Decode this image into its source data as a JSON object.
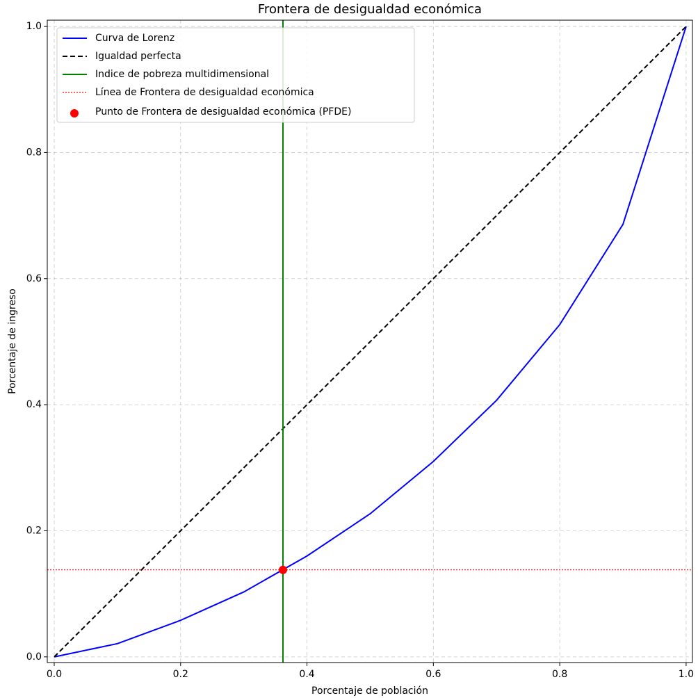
{
  "chart_data": {
    "type": "line",
    "title": "Frontera de desigualdad económica",
    "xlabel": "Porcentaje de población",
    "ylabel": "Porcentaje de ingreso",
    "xlim": [
      -0.011,
      1.01
    ],
    "ylim": [
      -0.009,
      1.01
    ],
    "xticks": [
      {
        "value": 0,
        "label": "0.0"
      },
      0.2,
      0.4,
      0.6,
      0.8,
      {
        "value": 1,
        "label": "1.0"
      }
    ],
    "yticks": [
      {
        "value": 0,
        "label": "0.0"
      },
      0.2,
      0.4,
      0.6,
      0.8,
      {
        "value": 1,
        "label": "1.0"
      }
    ],
    "grid": true,
    "legend": "upper-left",
    "series": [
      {
        "name": "Curva de Lorenz",
        "kind": "line",
        "color": "#0000ff",
        "x": [
          0,
          0.1,
          0.2,
          0.3,
          0.4,
          0.5,
          0.6,
          0.7,
          0.8,
          0.9,
          1
        ],
        "values": [
          0,
          0.021,
          0.058,
          0.103,
          0.16,
          0.227,
          0.31,
          0.407,
          0.527,
          0.686,
          1
        ]
      },
      {
        "name": "Igualdad perfecta",
        "kind": "dashed",
        "color": "#000000",
        "x": [
          0,
          1
        ],
        "values": [
          0,
          1
        ]
      },
      {
        "name": "Indice de pobreza multidimensional",
        "kind": "vline",
        "color": "#008000",
        "x": 0.362
      },
      {
        "name": "Línea de Frontera de desigualdad económica",
        "kind": "hline",
        "color": "#ff0000",
        "y": 0.138
      },
      {
        "name": "Punto de Frontera de desigualdad económica (PFDE)",
        "kind": "point",
        "color": "#ff0000",
        "x": 0.362,
        "y": 0.138
      }
    ]
  }
}
